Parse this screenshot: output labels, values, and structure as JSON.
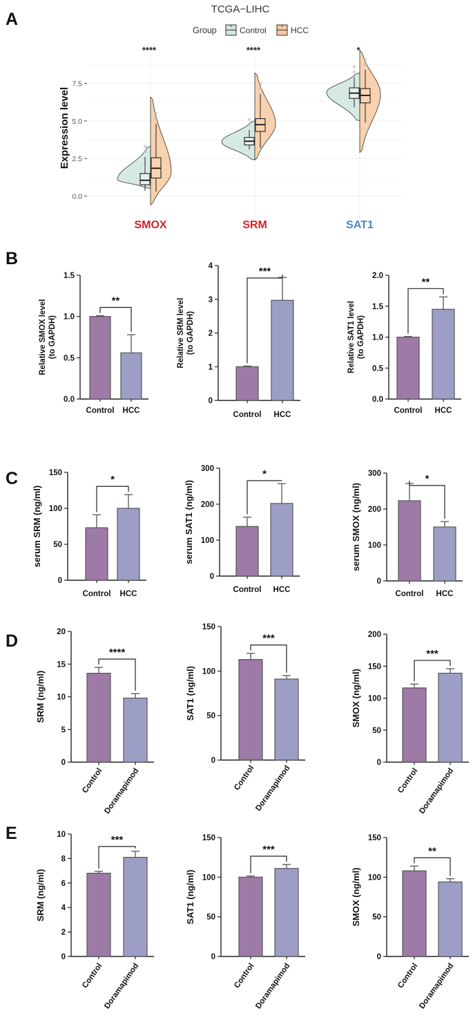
{
  "colors": {
    "control_fill": "#9e7aa7",
    "treatment_fill": "#9d9ec6",
    "bar_stroke": "#555555",
    "violin_control": "#cfe6dc",
    "violin_hcc": "#f7c9a0",
    "gene_red": "#d3212b",
    "gene_blue": "#4a86c8"
  },
  "chart_data": [
    {
      "id": "A",
      "panel": "A",
      "type": "violin",
      "title": "TCGA−LIHC",
      "legend_title": "Group",
      "legend": [
        "Control",
        "HCC"
      ],
      "ylabel": "Expression level",
      "ylim": [
        -0.8,
        10.1
      ],
      "yticks": [
        0.0,
        2.5,
        5.0,
        7.5
      ],
      "ytick_labels": [
        "0.0",
        "2.5",
        "5.0",
        "7.5"
      ],
      "genes": [
        {
          "label": "SMOX",
          "color": "red",
          "sig": "****",
          "control": {
            "q1": 0.75,
            "median": 1.05,
            "q3": 1.5,
            "lo": 0.35,
            "hi": 2.6,
            "vmin": 0.5,
            "vmax": 3.3,
            "vmode": 1.1
          },
          "hcc": {
            "q1": 1.2,
            "median": 1.85,
            "q3": 2.55,
            "lo": 0.3,
            "hi": 4.8,
            "vmin": -0.6,
            "vmax": 6.6,
            "vmode": 1.6
          }
        },
        {
          "label": "SRM",
          "color": "red",
          "sig": "****",
          "control": {
            "q1": 3.4,
            "median": 3.65,
            "q3": 3.9,
            "lo": 3.1,
            "hi": 4.4,
            "vmin": 2.4,
            "vmax": 5.0,
            "vmode": 3.6
          },
          "hcc": {
            "q1": 4.3,
            "median": 4.75,
            "q3": 5.15,
            "lo": 3.2,
            "hi": 6.8,
            "vmin": 2.4,
            "vmax": 8.2,
            "vmode": 4.8
          }
        },
        {
          "label": "SAT1",
          "color": "blue",
          "sig": "*",
          "control": {
            "q1": 6.5,
            "median": 6.85,
            "q3": 7.2,
            "lo": 5.9,
            "hi": 7.9,
            "vmin": 5.0,
            "vmax": 8.2,
            "vmode": 6.9
          },
          "hcc": {
            "q1": 6.2,
            "median": 6.7,
            "q3": 7.15,
            "lo": 4.9,
            "hi": 8.4,
            "vmin": 2.9,
            "vmax": 9.7,
            "vmode": 6.8
          }
        }
      ]
    },
    {
      "id": "B1",
      "panel": "B",
      "type": "bar",
      "ylabel": [
        "Relative SMOX level",
        "(to GAPDH)"
      ],
      "ylim": [
        0,
        1.5
      ],
      "yticks": [
        0.0,
        0.5,
        1.0,
        1.5
      ],
      "ytick_labels": [
        "0.0",
        "0.5",
        "1.0",
        "1.5"
      ],
      "categories": [
        "Control",
        "HCC"
      ],
      "values": [
        1.0,
        0.56
      ],
      "errors": [
        0.01,
        0.22
      ],
      "sig": "**",
      "rotate": false
    },
    {
      "id": "B2",
      "panel": "B",
      "type": "bar",
      "ylabel": [
        "Relative SRM level",
        "(to GAPDH)"
      ],
      "ylim": [
        0,
        4
      ],
      "yticks": [
        0,
        1,
        2,
        3,
        4
      ],
      "ytick_labels": [
        "0",
        "1",
        "2",
        "3",
        "4"
      ],
      "categories": [
        "Control",
        "HCC"
      ],
      "values": [
        1.0,
        2.97
      ],
      "errors": [
        0.02,
        0.68
      ],
      "sig": "***",
      "rotate": false
    },
    {
      "id": "B3",
      "panel": "B",
      "type": "bar",
      "ylabel": [
        "Relative SAT1 level",
        "(to GAPDH)"
      ],
      "ylim": [
        0,
        2.0
      ],
      "yticks": [
        0.0,
        0.5,
        1.0,
        1.5,
        2.0
      ],
      "ytick_labels": [
        "0.0",
        "0.5",
        "1.0",
        "1.5",
        "2.0"
      ],
      "categories": [
        "Control",
        "HCC"
      ],
      "values": [
        1.0,
        1.45
      ],
      "errors": [
        0.01,
        0.2
      ],
      "sig": "**",
      "rotate": false
    },
    {
      "id": "C1",
      "panel": "C",
      "type": "bar",
      "ylabel": [
        "serum SRM (ng/ml)"
      ],
      "ylim": [
        0,
        150
      ],
      "yticks": [
        0,
        50,
        100,
        150
      ],
      "ytick_labels": [
        "0",
        "50",
        "100",
        "150"
      ],
      "categories": [
        "Control",
        "HCC"
      ],
      "values": [
        73,
        100
      ],
      "errors": [
        18,
        19
      ],
      "sig": "*",
      "rotate": false
    },
    {
      "id": "C2",
      "panel": "C",
      "type": "bar",
      "ylabel": [
        "serum SAT1 (ng/ml)"
      ],
      "ylim": [
        0,
        300
      ],
      "yticks": [
        0,
        100,
        200,
        300
      ],
      "ytick_labels": [
        "0",
        "100",
        "200",
        "300"
      ],
      "categories": [
        "Control",
        "HCC"
      ],
      "values": [
        138,
        202
      ],
      "errors": [
        26,
        55
      ],
      "sig": "*",
      "rotate": false
    },
    {
      "id": "C3",
      "panel": "C",
      "type": "bar",
      "ylabel": [
        "serum SMOX (ng/ml)"
      ],
      "ylim": [
        0,
        300
      ],
      "yticks": [
        0,
        100,
        200,
        300
      ],
      "ytick_labels": [
        "0",
        "100",
        "200",
        "300"
      ],
      "categories": [
        "Control",
        "HCC"
      ],
      "values": [
        223,
        150
      ],
      "errors": [
        48,
        15
      ],
      "sig": "*",
      "rotate": false
    },
    {
      "id": "D1",
      "panel": "D",
      "type": "bar",
      "ylabel": [
        "SRM (ng/ml)"
      ],
      "ylim": [
        0,
        20
      ],
      "yticks": [
        0,
        5,
        10,
        15,
        20
      ],
      "ytick_labels": [
        "0",
        "5",
        "10",
        "15",
        "20"
      ],
      "categories": [
        "Control",
        "Doramapimod"
      ],
      "values": [
        13.6,
        9.8
      ],
      "errors": [
        0.9,
        0.7
      ],
      "sig": "****",
      "rotate": true
    },
    {
      "id": "D2",
      "panel": "D",
      "type": "bar",
      "ylabel": [
        "SAT1 (ng/ml)"
      ],
      "ylim": [
        0,
        150
      ],
      "yticks": [
        0,
        50,
        100,
        150
      ],
      "ytick_labels": [
        "0",
        "50",
        "100",
        "150"
      ],
      "categories": [
        "Control",
        "Doramapimod"
      ],
      "values": [
        113,
        91
      ],
      "errors": [
        7,
        4
      ],
      "sig": "***",
      "rotate": true
    },
    {
      "id": "D3",
      "panel": "D",
      "type": "bar",
      "ylabel": [
        "SMOX (ng/ml)"
      ],
      "ylim": [
        0,
        200
      ],
      "yticks": [
        0,
        50,
        100,
        150,
        200
      ],
      "ytick_labels": [
        "0",
        "50",
        "100",
        "150",
        "200"
      ],
      "categories": [
        "Control",
        "Doramapimod"
      ],
      "values": [
        116,
        139
      ],
      "errors": [
        6,
        7
      ],
      "sig": "***",
      "rotate": true
    },
    {
      "id": "E1",
      "panel": "E",
      "type": "bar",
      "ylabel": [
        "SRM (ng/ml)"
      ],
      "ylim": [
        0,
        10
      ],
      "yticks": [
        0,
        2,
        4,
        6,
        8,
        10
      ],
      "ytick_labels": [
        "0",
        "2",
        "4",
        "6",
        "8",
        "10"
      ],
      "categories": [
        "Control",
        "Doramapimod"
      ],
      "values": [
        6.8,
        8.1
      ],
      "errors": [
        0.15,
        0.5
      ],
      "sig": "***",
      "rotate": true
    },
    {
      "id": "E2",
      "panel": "E",
      "type": "bar",
      "ylabel": [
        "SAT1 (ng/ml)"
      ],
      "ylim": [
        0,
        150
      ],
      "yticks": [
        0,
        50,
        100,
        150
      ],
      "ytick_labels": [
        "0",
        "50",
        "100",
        "150"
      ],
      "categories": [
        "Control",
        "Doramapimod"
      ],
      "values": [
        100,
        111
      ],
      "errors": [
        1.5,
        5
      ],
      "sig": "***",
      "rotate": true
    },
    {
      "id": "E3",
      "panel": "E",
      "type": "bar",
      "ylabel": [
        "SMOX (ng/ml)"
      ],
      "ylim": [
        0,
        150
      ],
      "yticks": [
        0,
        50,
        100,
        150
      ],
      "ytick_labels": [
        "0",
        "50",
        "100",
        "150"
      ],
      "categories": [
        "Control",
        "Doramapimod"
      ],
      "values": [
        108,
        94
      ],
      "errors": [
        6,
        4
      ],
      "sig": "**",
      "rotate": true
    }
  ]
}
